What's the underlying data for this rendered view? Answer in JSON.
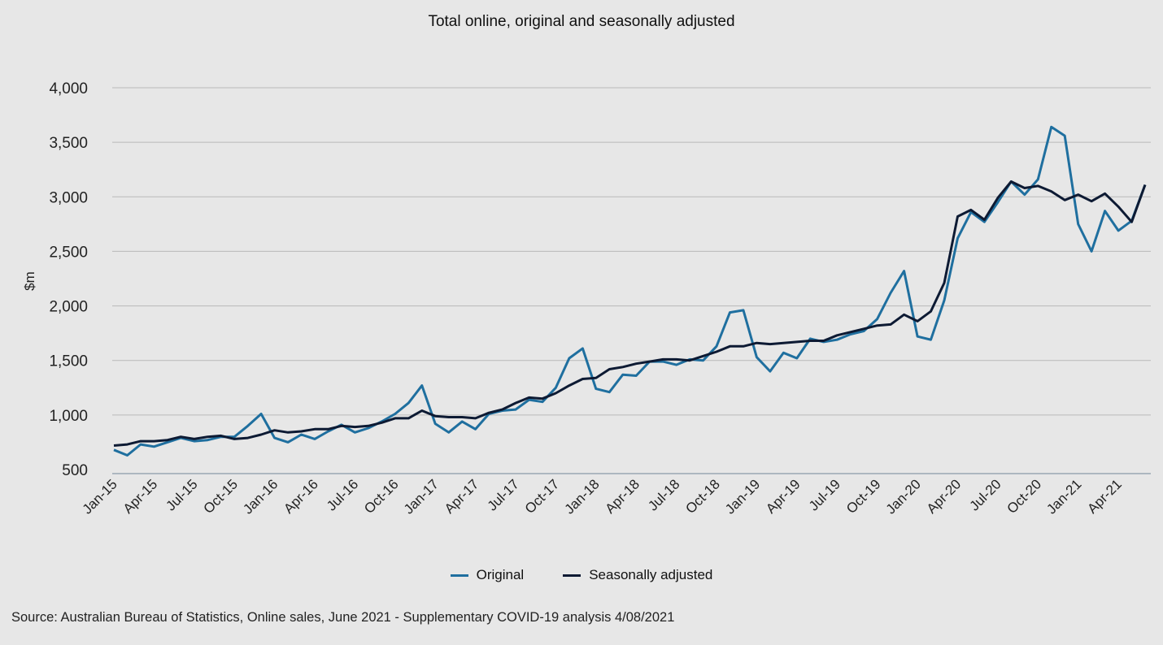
{
  "chart_data": {
    "type": "line",
    "title": "Total online, original and seasonally adjusted",
    "ylabel": "$m",
    "xlabel": "",
    "ylim": [
      500,
      4000
    ],
    "yticks": [
      "4,000",
      "3,500",
      "3,000",
      "2,500",
      "2,000",
      "1,500",
      "1,000",
      "500"
    ],
    "ytick_values": [
      4000,
      3500,
      3000,
      2500,
      2000,
      1500,
      1000,
      500
    ],
    "x": [
      "Jan-15",
      "Feb-15",
      "Mar-15",
      "Apr-15",
      "May-15",
      "Jun-15",
      "Jul-15",
      "Aug-15",
      "Sep-15",
      "Oct-15",
      "Nov-15",
      "Dec-15",
      "Jan-16",
      "Feb-16",
      "Mar-16",
      "Apr-16",
      "May-16",
      "Jun-16",
      "Jul-16",
      "Aug-16",
      "Sep-16",
      "Oct-16",
      "Nov-16",
      "Dec-16",
      "Jan-17",
      "Feb-17",
      "Mar-17",
      "Apr-17",
      "May-17",
      "Jun-17",
      "Jul-17",
      "Aug-17",
      "Sep-17",
      "Oct-17",
      "Nov-17",
      "Dec-17",
      "Jan-18",
      "Feb-18",
      "Mar-18",
      "Apr-18",
      "May-18",
      "Jun-18",
      "Jul-18",
      "Aug-18",
      "Sep-18",
      "Oct-18",
      "Nov-18",
      "Dec-18",
      "Jan-19",
      "Feb-19",
      "Mar-19",
      "Apr-19",
      "May-19",
      "Jun-19",
      "Jul-19",
      "Aug-19",
      "Sep-19",
      "Oct-19",
      "Nov-19",
      "Dec-19",
      "Jan-20",
      "Feb-20",
      "Mar-20",
      "Apr-20",
      "May-20",
      "Jun-20",
      "Jul-20",
      "Aug-20",
      "Sep-20",
      "Oct-20",
      "Nov-20",
      "Dec-20",
      "Jan-21",
      "Feb-21",
      "Mar-21",
      "Apr-21",
      "May-21",
      "Jun-21"
    ],
    "xtick_labels": [
      "Jan-15",
      "Apr-15",
      "Jul-15",
      "Oct-15",
      "Jan-16",
      "Apr-16",
      "Jul-16",
      "Oct-16",
      "Jan-17",
      "Apr-17",
      "Jul-17",
      "Oct-17",
      "Jan-18",
      "Apr-18",
      "Jul-18",
      "Oct-18",
      "Jan-19",
      "Apr-19",
      "Jul-19",
      "Oct-19",
      "Jan-20",
      "Apr-20",
      "Jul-20",
      "Oct-20",
      "Jan-21",
      "Apr-21"
    ],
    "grid": true,
    "legend_position": "bottom",
    "series": [
      {
        "name": "Original",
        "color": "#1f6f9f",
        "values": [
          680,
          630,
          730,
          710,
          750,
          790,
          760,
          770,
          800,
          800,
          900,
          1010,
          790,
          750,
          820,
          780,
          850,
          910,
          840,
          880,
          940,
          1010,
          1110,
          1270,
          920,
          840,
          940,
          870,
          1010,
          1040,
          1050,
          1140,
          1120,
          1250,
          1520,
          1610,
          1240,
          1210,
          1370,
          1360,
          1490,
          1490,
          1460,
          1510,
          1500,
          1630,
          1940,
          1960,
          1530,
          1400,
          1570,
          1520,
          1700,
          1670,
          1690,
          1740,
          1770,
          1880,
          2120,
          2320,
          1720,
          1690,
          2050,
          2620,
          2860,
          2770,
          2950,
          3140,
          3020,
          3160,
          3640,
          3560,
          2750,
          2500,
          2870,
          2690,
          2780,
          3110
        ]
      },
      {
        "name": "Seasonally adjusted",
        "color": "#0d1a33",
        "values": [
          720,
          730,
          760,
          760,
          770,
          800,
          780,
          800,
          810,
          780,
          790,
          820,
          860,
          840,
          850,
          870,
          870,
          900,
          890,
          900,
          930,
          970,
          970,
          1040,
          990,
          980,
          980,
          970,
          1020,
          1050,
          1110,
          1160,
          1150,
          1200,
          1270,
          1330,
          1340,
          1420,
          1440,
          1470,
          1490,
          1510,
          1510,
          1500,
          1540,
          1580,
          1630,
          1630,
          1660,
          1650,
          1660,
          1670,
          1680,
          1680,
          1730,
          1760,
          1790,
          1820,
          1830,
          1920,
          1860,
          1950,
          2210,
          2820,
          2880,
          2790,
          2990,
          3140,
          3080,
          3100,
          3050,
          2970,
          3020,
          2960,
          3030,
          2910,
          2770,
          3110
        ]
      }
    ]
  },
  "source": "Source: Australian Bureau of Statistics, Online sales, June 2021 - Supplementary COVID-19 analysis 4/08/2021"
}
